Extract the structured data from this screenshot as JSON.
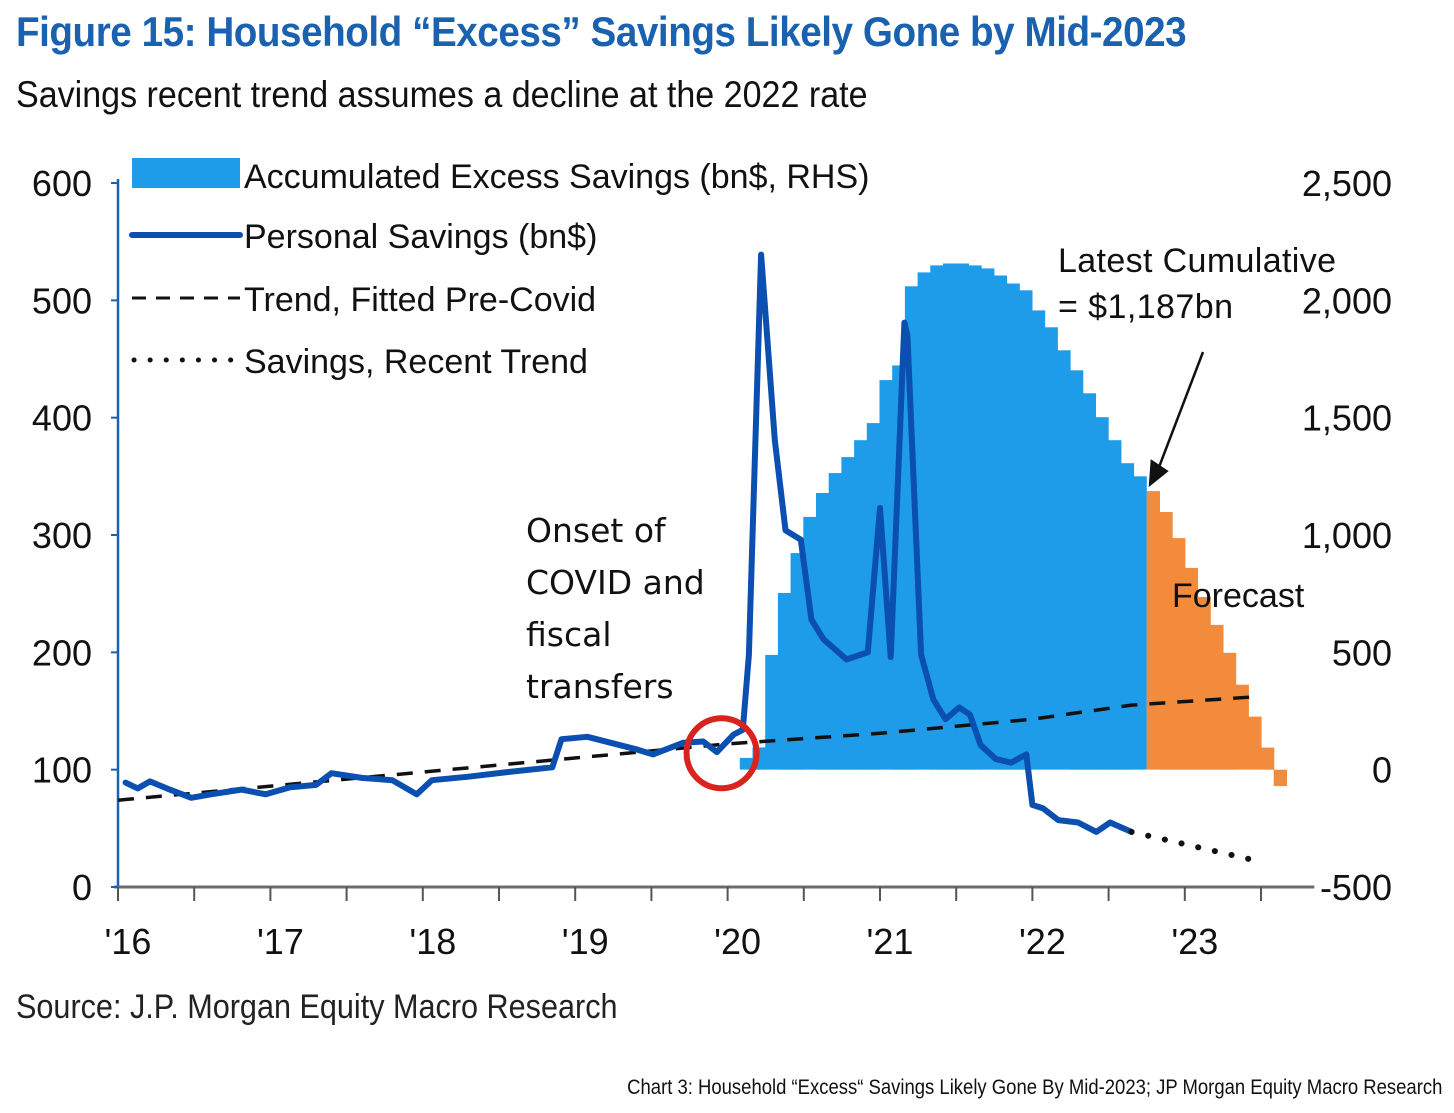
{
  "header": {
    "title": "Figure 15: Household “Excess” Savings Likely Gone by Mid-2023",
    "subtitle": "Savings recent trend assumes a decline at the 2022 rate"
  },
  "footer": {
    "source": "Source: J.P. Morgan Equity Macro Research",
    "caption": "Chart 3: Household “Excess“ Savings Likely Gone By Mid-2023; JP Morgan Equity Macro Research"
  },
  "colors": {
    "bars_actual": "#1e9be9",
    "bars_forecast": "#f28c3c",
    "personal_savings": "#0b4fb0",
    "axis": "#1a62b0",
    "highlight_circle": "#d9231f"
  },
  "chart_data": {
    "type": "bar+line",
    "title": "Figure 15: Household “Excess” Savings Likely Gone by Mid-2023",
    "subtitle": "Savings recent trend assumes a decline at the 2022 rate",
    "x_axis": {
      "tick_labels": [
        "'16",
        "'17",
        "'18",
        "'19",
        "'20",
        "'21",
        "'22",
        "'23"
      ],
      "range": [
        2016.0,
        2023.85
      ],
      "unit": "year (decimal)"
    },
    "y_left": {
      "label": "bn$",
      "range": [
        0,
        600
      ],
      "ticks": [
        0,
        100,
        200,
        300,
        400,
        500,
        600
      ],
      "tick_labels": [
        "0",
        "100",
        "200",
        "300",
        "400",
        "500",
        "600"
      ]
    },
    "y_right": {
      "label": "bn$ (RHS)",
      "range": [
        -500,
        2500
      ],
      "ticks": [
        -500,
        0,
        500,
        1000,
        1500,
        2000,
        2500
      ],
      "tick_labels": [
        "-500",
        "0",
        "500",
        "1,000",
        "1,500",
        "2,000",
        "2,500"
      ]
    },
    "legend": {
      "position": "top-left",
      "entries": [
        {
          "label": "Accumulated Excess Savings (bn$, RHS)",
          "style": "bar"
        },
        {
          "label": "Personal Savings (bn$)",
          "style": "solid-line"
        },
        {
          "label": "Trend, Fitted Pre-Covid",
          "style": "dashed-line"
        },
        {
          "label": "Savings, Recent Trend",
          "style": "dotted-line"
        }
      ]
    },
    "series": [
      {
        "name": "Accumulated Excess Savings (bn$, RHS)",
        "axis": "right",
        "kind": "bar",
        "start": 2020.08,
        "step_months": 1,
        "values": [
          50,
          95,
          489,
          753,
          923,
          1077,
          1179,
          1264,
          1332,
          1404,
          1477,
          1660,
          1723,
          2060,
          2119,
          2149,
          2157,
          2157,
          2149,
          2136,
          2106,
          2072,
          2043,
          1957,
          1885,
          1787,
          1702,
          1604,
          1502,
          1404,
          1306,
          1250
        ]
      },
      {
        "name": "Forecast",
        "axis": "right",
        "kind": "bar",
        "start": 2022.75,
        "step_months": 1,
        "values": [
          1187,
          1098,
          987,
          860,
          736,
          617,
          498,
          362,
          226,
          94,
          -70
        ]
      },
      {
        "name": "Personal Savings (bn$)",
        "axis": "left",
        "kind": "line",
        "x": [
          2016.05,
          2016.13,
          2016.21,
          2016.34,
          2016.48,
          2016.61,
          2016.81,
          2016.97,
          2017.13,
          2017.3,
          2017.4,
          2017.6,
          2017.8,
          2017.96,
          2018.06,
          2018.3,
          2018.56,
          2018.85,
          2018.91,
          2019.08,
          2019.41,
          2019.51,
          2019.71,
          2019.84,
          2019.93,
          2020.04,
          2020.1,
          2020.14,
          2020.22,
          2020.31,
          2020.38,
          2020.48,
          2020.55,
          2020.63,
          2020.78,
          2020.92,
          2021.0,
          2021.07,
          2021.16,
          2021.18,
          2021.27,
          2021.35,
          2021.43,
          2021.52,
          2021.59,
          2021.66,
          2021.76,
          2021.86,
          2021.96,
          2022.0,
          2022.07,
          2022.17,
          2022.3,
          2022.42,
          2022.51,
          2022.65
        ],
        "values": [
          89,
          84,
          90,
          83,
          76,
          79,
          83,
          79,
          85,
          87,
          97,
          93,
          91,
          79,
          91,
          94,
          98,
          102,
          126,
          128,
          117,
          113,
          123,
          124,
          115,
          130,
          134,
          198,
          539,
          381,
          304,
          296,
          228,
          211,
          194,
          200,
          323,
          196,
          481,
          470,
          198,
          160,
          143,
          153,
          147,
          121,
          109,
          106,
          113,
          70,
          67,
          57,
          55,
          47,
          55,
          47
        ]
      },
      {
        "name": "Trend, Fitted Pre-Covid",
        "axis": "left",
        "kind": "dashed-line",
        "x": [
          2016.0,
          2020.0,
          2021.0,
          2022.0,
          2022.65,
          2023.45
        ],
        "values": [
          74,
          122,
          131,
          143,
          155,
          162
        ]
      },
      {
        "name": "Savings, Recent Trend",
        "axis": "left",
        "kind": "dotted-line",
        "x": [
          2022.65,
          2023.45
        ],
        "values": [
          47,
          23
        ]
      }
    ],
    "annotations": [
      {
        "id": "covid",
        "lines": [
          "Onset of",
          "COVID and",
          "fiscal",
          "transfers"
        ],
        "target": {
          "x": 2019.98,
          "y": 120
        },
        "marker": "red-circle"
      },
      {
        "id": "latest",
        "lines": [
          "Latest Cumulative",
          "= $1,187bn"
        ],
        "arrow_to": {
          "x": 2022.75,
          "y_rhs": 1187
        }
      },
      {
        "id": "forecast",
        "lines": [
          "Forecast"
        ]
      }
    ],
    "grid": false
  }
}
